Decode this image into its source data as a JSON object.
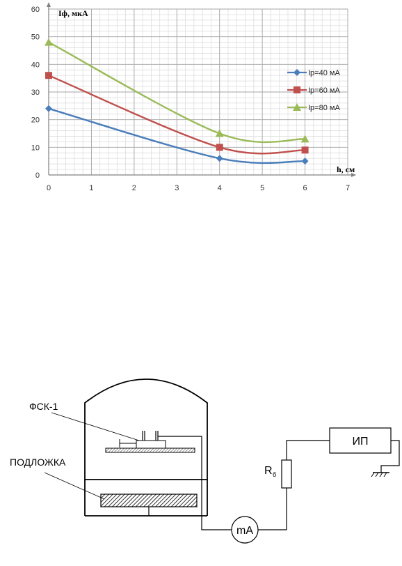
{
  "chart_data": {
    "type": "line",
    "x": [
      0,
      4,
      6
    ],
    "xlim": [
      0,
      7
    ],
    "ylim": [
      0,
      60
    ],
    "x_ticks": [
      "0",
      "1",
      "2",
      "3",
      "4",
      "5",
      "6",
      "7"
    ],
    "y_ticks": [
      "0",
      "10",
      "20",
      "30",
      "40",
      "50",
      "60"
    ],
    "xlabel": "h, см",
    "ylabel": "Iф, мкА",
    "grid": true,
    "legend_position": "right",
    "series": [
      {
        "name": "Ip=40 мА",
        "values": [
          24,
          6,
          5
        ],
        "color": "#4a7ebb",
        "marker": "diamond"
      },
      {
        "name": "Ip=60 мА",
        "values": [
          36,
          10,
          9
        ],
        "color": "#c0504d",
        "marker": "square"
      },
      {
        "name": "Ip=80 мА",
        "values": [
          48,
          15,
          13
        ],
        "color": "#9bbb59",
        "marker": "triangle"
      }
    ]
  },
  "circuit": {
    "label_fsk": "ФСК-1",
    "label_substrate": "ПОДЛОЖКА",
    "label_resistor_main": "R",
    "label_resistor_sub": "б",
    "label_power": "ИП",
    "label_meter": "mA"
  }
}
